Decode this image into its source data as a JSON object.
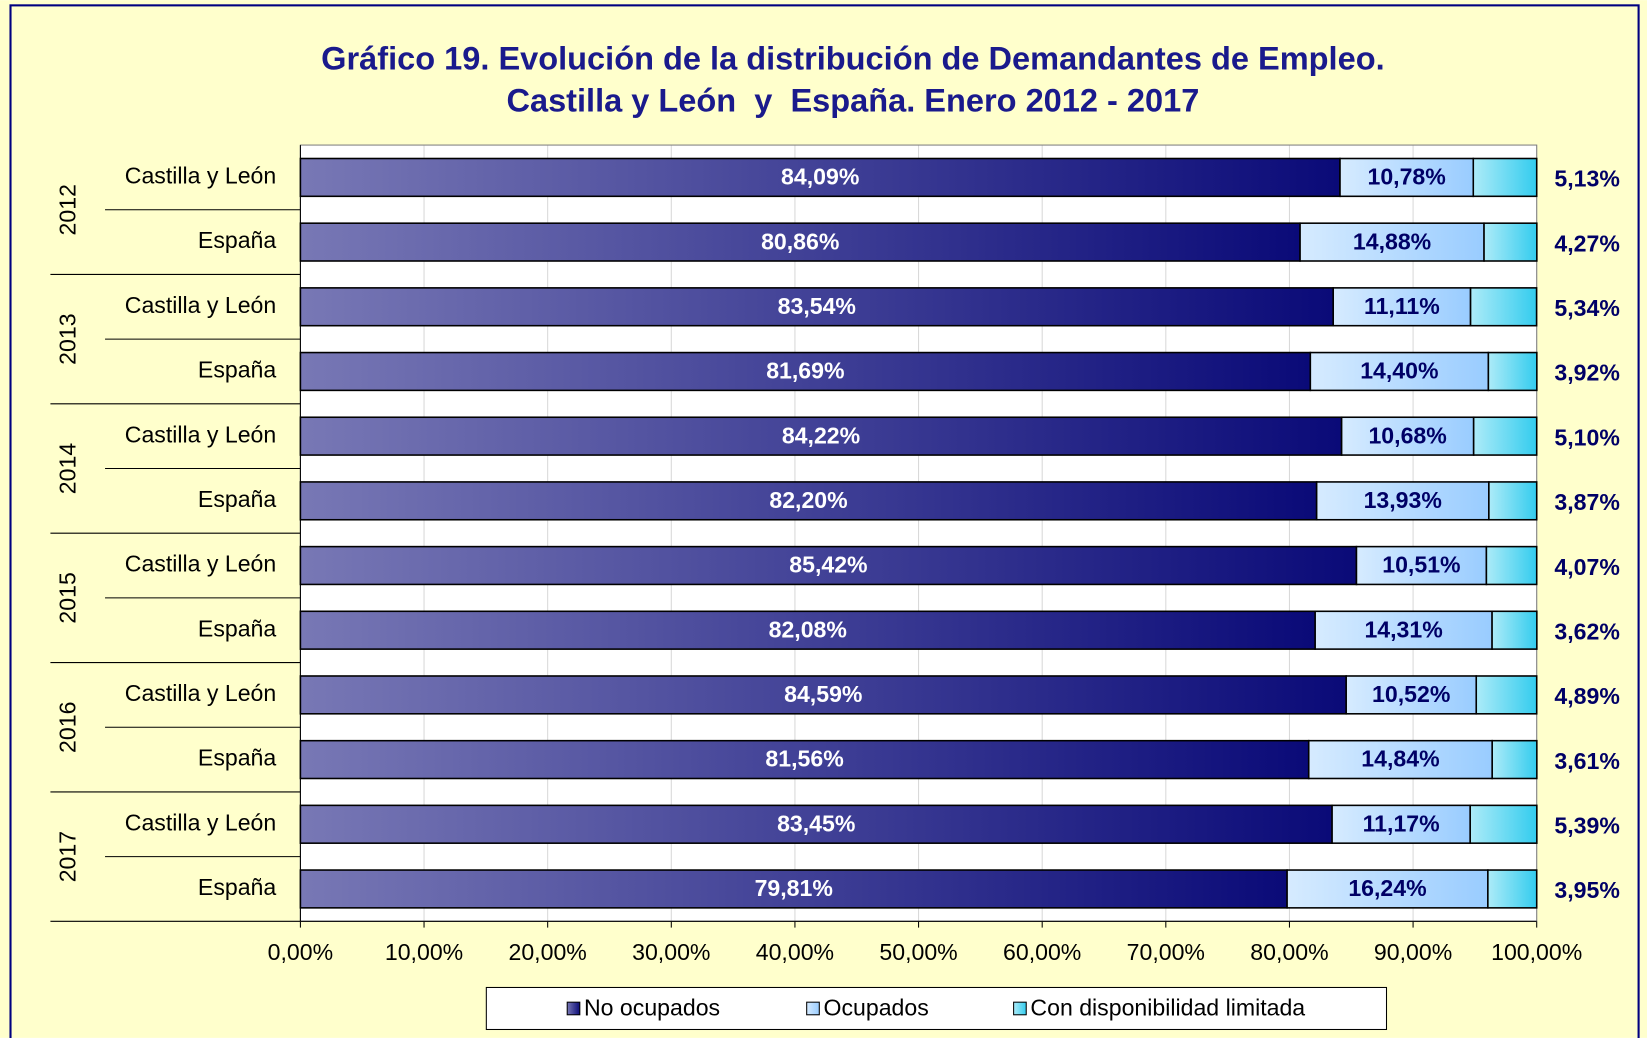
{
  "chart_data": {
    "type": "stacked-bar-horizontal",
    "title": [
      "Gráfico 19. Evolución de la distribución de Demandantes de Empleo.",
      "Castilla y León  y  España. Enero 2012 - 2017"
    ],
    "groups": [
      "2012",
      "2013",
      "2014",
      "2015",
      "2016",
      "2017"
    ],
    "categories": [
      "Castilla y León",
      "España",
      "Castilla y León",
      "España",
      "Castilla y León",
      "España",
      "Castilla y León",
      "España",
      "Castilla y León",
      "España",
      "Castilla y León",
      "España"
    ],
    "series": [
      {
        "name": "No ocupados",
        "color": "#0a0a78",
        "label_color": "#ffffff",
        "values": [
          84.09,
          80.86,
          83.54,
          81.69,
          84.22,
          82.2,
          85.42,
          82.08,
          84.59,
          81.56,
          83.45,
          79.81
        ],
        "value_labels": [
          "84,09%",
          "80,86%",
          "83,54%",
          "81,69%",
          "84,22%",
          "82,20%",
          "85,42%",
          "82,08%",
          "84,59%",
          "81,56%",
          "83,45%",
          "79,81%"
        ]
      },
      {
        "name": "Ocupados",
        "color": "#99ccff",
        "label_color": "#000066",
        "values": [
          10.78,
          14.88,
          11.11,
          14.4,
          10.68,
          13.93,
          10.51,
          14.31,
          10.52,
          14.84,
          11.17,
          16.24
        ],
        "value_labels": [
          "10,78%",
          "14,88%",
          "11,11%",
          "14,40%",
          "10,68%",
          "13,93%",
          "10,51%",
          "14,31%",
          "10,52%",
          "14,84%",
          "11,17%",
          "16,24%"
        ]
      },
      {
        "name": "Con disponibilidad limitada",
        "color": "#33ccee",
        "label_color": "#000066",
        "values": [
          5.13,
          4.27,
          5.34,
          3.92,
          5.1,
          3.87,
          4.07,
          3.62,
          4.89,
          3.61,
          5.39,
          3.95
        ],
        "value_labels": [
          "5,13%",
          "4,27%",
          "5,34%",
          "3,92%",
          "5,10%",
          "3,87%",
          "4,07%",
          "3,62%",
          "4,89%",
          "3,61%",
          "5,39%",
          "3,95%"
        ]
      }
    ],
    "xlim": [
      0,
      100
    ],
    "xticks": [
      {
        "value": 0,
        "label": "0,00%"
      },
      {
        "value": 10,
        "label": "10,00%"
      },
      {
        "value": 20,
        "label": "20,00%"
      },
      {
        "value": 30,
        "label": "30,00%"
      },
      {
        "value": 40,
        "label": "40,00%"
      },
      {
        "value": 50,
        "label": "50,00%"
      },
      {
        "value": 60,
        "label": "60,00%"
      },
      {
        "value": 70,
        "label": "70,00%"
      },
      {
        "value": 80,
        "label": "80,00%"
      },
      {
        "value": 90,
        "label": "90,00%"
      },
      {
        "value": 100,
        "label": "100,00%"
      }
    ],
    "grid": true,
    "legend": "bottom"
  }
}
